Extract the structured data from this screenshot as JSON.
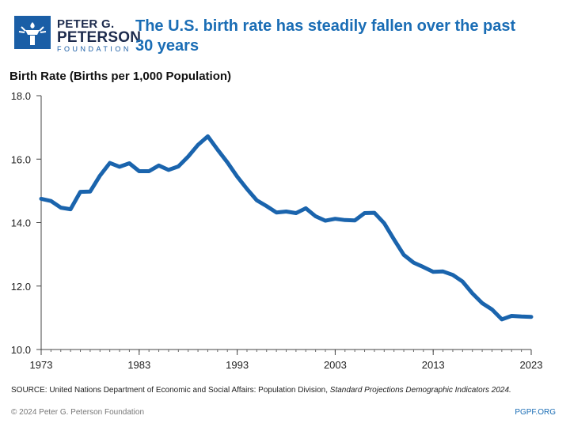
{
  "logo": {
    "line1": "PETER G.",
    "line2": "PETERSON",
    "line3": "FOUNDATION",
    "icon": "torch-icon",
    "color": "#1a5ea6"
  },
  "chart_data": {
    "type": "line",
    "title": "The U.S. birth rate has steadily fallen over the past 30 years",
    "ylabel": "Birth Rate (Births per 1,000 Population)",
    "xlabel": "",
    "ylim": [
      10.0,
      18.0
    ],
    "yticks": [
      "10.0",
      "12.0",
      "14.0",
      "16.0",
      "18.0"
    ],
    "xticks": [
      "1973",
      "1983",
      "1993",
      "2003",
      "2013",
      "2023"
    ],
    "line_color": "#1a64ad",
    "x": [
      1973,
      1974,
      1975,
      1976,
      1977,
      1978,
      1979,
      1980,
      1981,
      1982,
      1983,
      1984,
      1985,
      1986,
      1987,
      1988,
      1989,
      1990,
      1991,
      1992,
      1993,
      1994,
      1995,
      1996,
      1997,
      1998,
      1999,
      2000,
      2001,
      2002,
      2003,
      2004,
      2005,
      2006,
      2007,
      2008,
      2009,
      2010,
      2011,
      2012,
      2013,
      2014,
      2015,
      2016,
      2017,
      2018,
      2019,
      2020,
      2021,
      2022,
      2023
    ],
    "series": [
      {
        "name": "Birth Rate",
        "values": [
          14.75,
          14.68,
          14.47,
          14.42,
          14.97,
          14.98,
          15.48,
          15.88,
          15.76,
          15.87,
          15.62,
          15.62,
          15.8,
          15.66,
          15.77,
          16.08,
          16.45,
          16.72,
          16.3,
          15.9,
          15.45,
          15.06,
          14.7,
          14.52,
          14.32,
          14.35,
          14.3,
          14.45,
          14.2,
          14.06,
          14.12,
          14.08,
          14.07,
          14.3,
          14.31,
          13.98,
          13.47,
          12.98,
          12.74,
          12.6,
          12.45,
          12.46,
          12.35,
          12.14,
          11.77,
          11.46,
          11.26,
          10.95,
          11.06,
          11.04,
          11.03
        ]
      }
    ]
  },
  "source": {
    "prefix": "SOURCE: United Nations Department of Economic and Social Affairs: Population Division, ",
    "italic": "Standard Projections Demographic Indicators 2024."
  },
  "footer": {
    "copyright": "© 2024 Peter G. Peterson Foundation",
    "site": "PGPF.ORG"
  }
}
